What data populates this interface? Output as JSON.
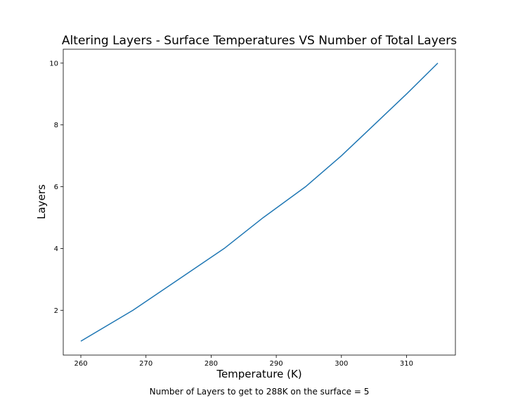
{
  "chart_data": {
    "type": "line",
    "title": "Altering Layers - Surface Temperatures VS Number of Total Layers",
    "xlabel": "Temperature (K)",
    "ylabel": "Layers",
    "caption": "Number of Layers to get to 288K on the surface = 5",
    "xlim": [
      257.3,
      317.5
    ],
    "ylim": [
      0.55,
      10.45
    ],
    "xticks": [
      260,
      270,
      280,
      290,
      300,
      310
    ],
    "yticks": [
      2,
      4,
      6,
      8,
      10
    ],
    "grid": false,
    "series": [
      {
        "color": "#1f77b4",
        "x": [
          260.0,
          268.0,
          275.0,
          282.0,
          288.0,
          294.5,
          300.0,
          305.0,
          310.0,
          314.8
        ],
        "y": [
          1,
          2,
          3,
          4,
          5,
          6,
          7,
          8,
          9,
          10
        ]
      }
    ]
  }
}
